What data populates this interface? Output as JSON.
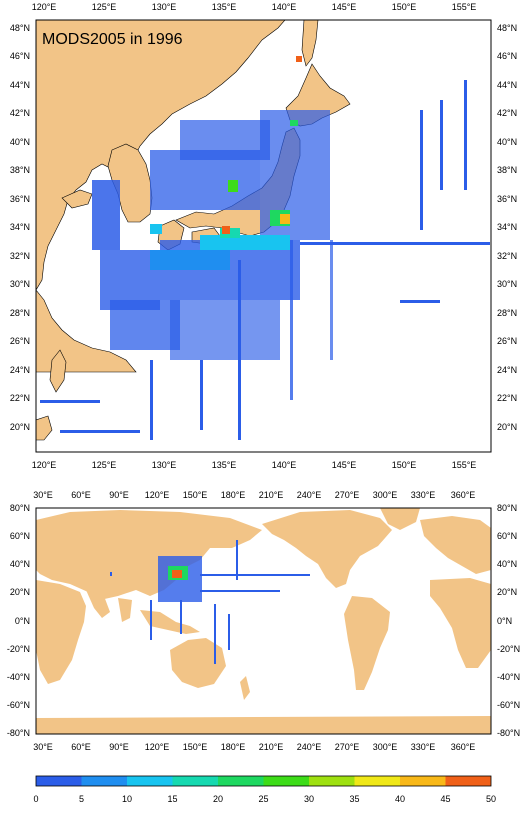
{
  "top_map": {
    "title": "MODS2005 in 1996",
    "lon_labels": [
      "120°E",
      "125°E",
      "130°E",
      "135°E",
      "140°E",
      "145°E",
      "150°E",
      "155°E"
    ],
    "lat_labels": [
      "48°N",
      "46°N",
      "44°N",
      "42°N",
      "40°N",
      "38°N",
      "36°N",
      "34°N",
      "32°N",
      "30°N",
      "28°N",
      "26°N",
      "24°N",
      "22°N",
      "20°N"
    ],
    "lon_range": [
      119,
      157
    ],
    "lat_range": [
      18.5,
      49.5
    ]
  },
  "bottom_map": {
    "lon_labels": [
      "30°E",
      "60°E",
      "90°E",
      "120°E",
      "150°E",
      "180°E",
      "210°E",
      "240°E",
      "270°E",
      "300°E",
      "330°E",
      "360°E"
    ],
    "lat_labels": [
      "80°N",
      "60°N",
      "40°N",
      "20°N",
      "0°N",
      "-20°N",
      "-40°N",
      "-60°N",
      "-80°N"
    ],
    "lon_range": [
      20,
      380
    ],
    "lat_range": [
      -80,
      80
    ]
  },
  "colorbar": {
    "labels": [
      "0",
      "5",
      "10",
      "15",
      "20",
      "25",
      "30",
      "35",
      "40",
      "45",
      "50"
    ],
    "colors": [
      "#2b5de8",
      "#1f8ef0",
      "#18c4f0",
      "#16d9b0",
      "#1ed860",
      "#3ddc18",
      "#9ee010",
      "#f0e818",
      "#f8b818",
      "#f06018"
    ]
  },
  "style": {
    "land_color": "#f2c487",
    "ocean_color": "#ffffff",
    "obs_low": "#2b5de8"
  }
}
